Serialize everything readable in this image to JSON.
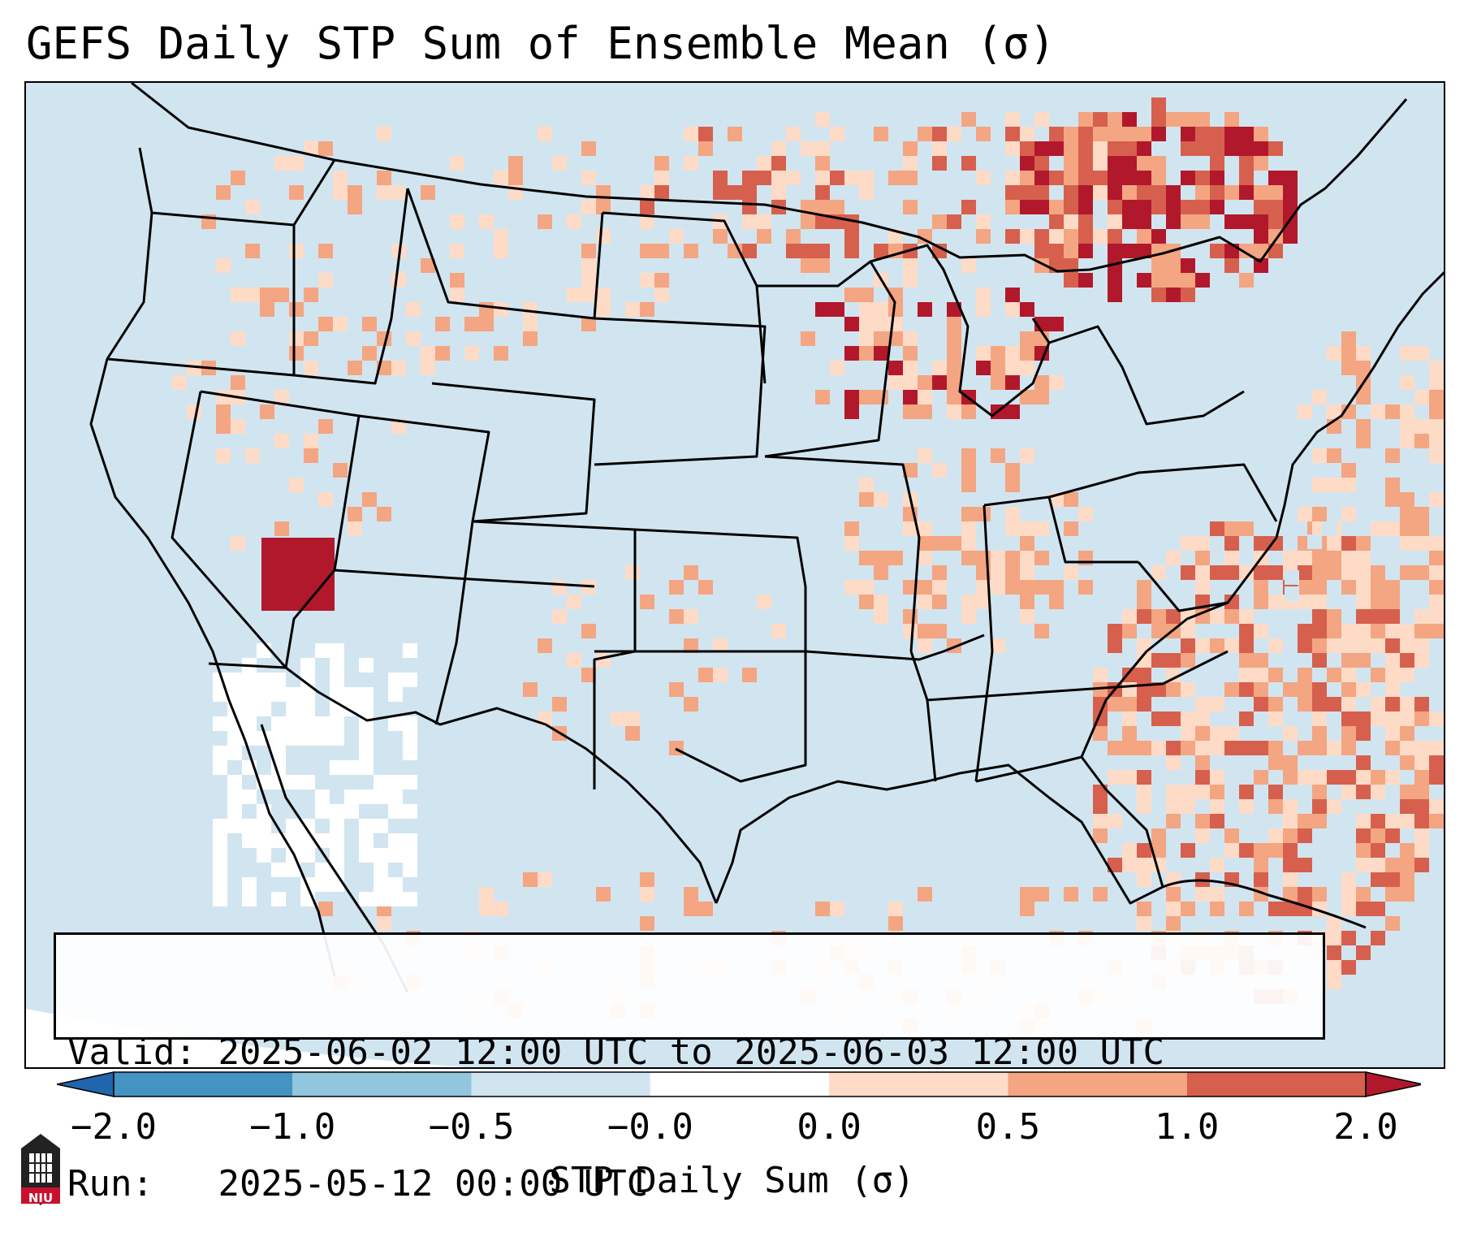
{
  "title": "GEFS Daily STP Sum of Ensemble Mean (σ)",
  "info": {
    "valid_label": "Valid:",
    "valid_value": "2025-06-02 12:00 UTC to 2025-06-03 12:00 UTC",
    "run_label": "Run:",
    "run_value": "2025-05-12 00:00 UTC"
  },
  "colorbar": {
    "label": "STP Daily Sum (σ)",
    "ticks": [
      "−2.0",
      "−1.0",
      "−0.5",
      "−0.0",
      "0.0",
      "0.5",
      "1.0",
      "2.0"
    ],
    "bins": [
      {
        "range": "below -2.0",
        "color": "#2166ac"
      },
      {
        "range": "-2.0 to -1.0",
        "color": "#4393c3"
      },
      {
        "range": "-1.0 to -0.5",
        "color": "#92c5de"
      },
      {
        "range": "-0.5 to -0.0",
        "color": "#d1e5f0"
      },
      {
        "range": "-0.0 to 0.0",
        "color": "#ffffff"
      },
      {
        "range": "0.0 to 0.5",
        "color": "#fddbc7"
      },
      {
        "range": "0.5 to 1.0",
        "color": "#f4a582"
      },
      {
        "range": "1.0 to 2.0",
        "color": "#d6604d"
      },
      {
        "range": "above 2.0",
        "color": "#b2182b"
      }
    ]
  },
  "map": {
    "background_color": "#d1e5f0",
    "outside_color": "#ffffff",
    "border_color": "#000000"
  },
  "logo": {
    "text": "NIU",
    "color": "#c8102e"
  }
}
